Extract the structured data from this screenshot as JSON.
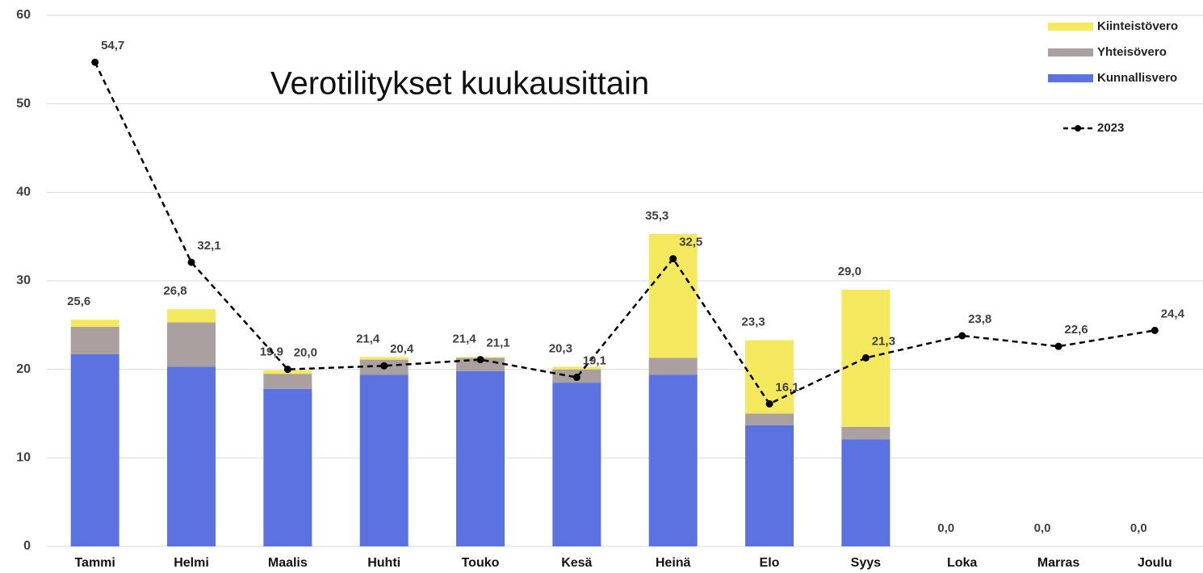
{
  "chart_data": {
    "type": "bar",
    "stacked": true,
    "title": "Verotilitykset kuukausittain",
    "categories": [
      "Tammi",
      "Helmi",
      "Maalis",
      "Huhti",
      "Touko",
      "Kesä",
      "Heinä",
      "Elo",
      "Syys",
      "Loka",
      "Marras",
      "Joulu"
    ],
    "series": [
      {
        "name": "Kunnallisvero",
        "type": "bar",
        "color": "#5b72e0",
        "values": [
          21.7,
          20.3,
          17.8,
          19.4,
          19.8,
          18.5,
          19.4,
          13.7,
          12.1,
          0,
          0,
          0
        ]
      },
      {
        "name": "Yhteisövero",
        "type": "bar",
        "color": "#aaa0a0",
        "values": [
          3.1,
          5.0,
          1.7,
          1.7,
          1.5,
          1.5,
          1.9,
          1.3,
          1.4,
          0,
          0,
          0
        ]
      },
      {
        "name": "Kiinteistövero",
        "type": "bar",
        "color": "#f4e95e",
        "values": [
          0.8,
          1.5,
          0.4,
          0.3,
          0.1,
          0.3,
          14.0,
          8.3,
          15.5,
          0,
          0,
          0
        ]
      },
      {
        "name": "2023",
        "type": "line",
        "color": "#000000",
        "dashed": true,
        "values": [
          54.7,
          32.1,
          20.0,
          20.4,
          21.1,
          19.1,
          32.5,
          16.1,
          21.3,
          23.8,
          22.6,
          24.4
        ],
        "value_labels": [
          "54,7",
          "32,1",
          "20,0",
          "20,4",
          "21,1",
          "19,1",
          "32,5",
          "16,1",
          "21,3",
          "23,8",
          "22,6",
          "24,4"
        ]
      }
    ],
    "total_labels": [
      "25,6",
      "26,8",
      "19,9",
      "21,4",
      "21,4",
      "20,3",
      "35,3",
      "23,3",
      "29,0",
      "0,0",
      "0,0",
      "0,0"
    ],
    "ylim": [
      0,
      60
    ],
    "yticks": [
      0,
      10,
      20,
      30,
      40,
      50,
      60
    ],
    "grid": true,
    "legend": "top-right"
  }
}
